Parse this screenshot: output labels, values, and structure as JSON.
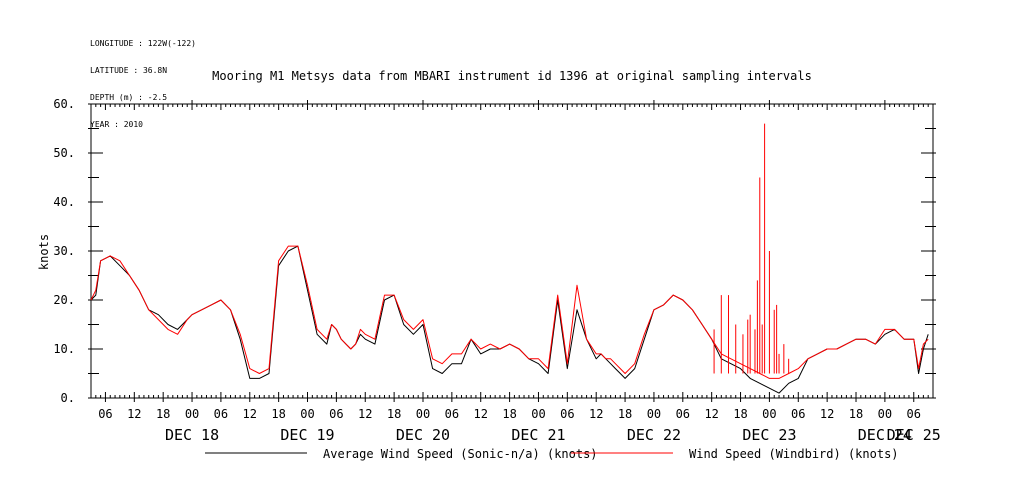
{
  "header": {
    "lines": [
      "LONGITUDE : 122W(-122)",
      "LATITUDE : 36.8N",
      "DEPTH (m) : -2.5",
      "YEAR : 2010"
    ]
  },
  "chart_data": {
    "type": "line",
    "title": "Mooring M1 Metsys data from MBARI instrument id 1396 at original sampling intervals",
    "ylabel": "knots",
    "xlabel": "",
    "ylim": [
      0,
      60
    ],
    "yticks": [
      0.0,
      10.0,
      20.0,
      30.0,
      40.0,
      50.0,
      60.0
    ],
    "ytick_labels": [
      "0.",
      "10.",
      "20.",
      "30.",
      "40.",
      "50.",
      "60."
    ],
    "xlim_hours": [
      -21,
      154
    ],
    "hour_tick_labels": [
      "06",
      "12",
      "18",
      "00",
      "06",
      "12",
      "18",
      "00",
      "06",
      "12",
      "18",
      "00",
      "06",
      "12",
      "18",
      "00",
      "06",
      "12",
      "18",
      "00",
      "06",
      "12",
      "18",
      "00",
      "06",
      "12",
      "18",
      "00",
      "06"
    ],
    "day_labels": [
      "DEC 18",
      "DEC 19",
      "DEC 20",
      "DEC 21",
      "DEC 22",
      "DEC 23",
      "DEC 24",
      "DEC 25"
    ],
    "grid": false,
    "legend_position": "bottom",
    "series": [
      {
        "name": "Average Wind Speed (Sonic-n/a) (knots)",
        "color": "#000000",
        "x": [
          -21,
          -20,
          -19,
          -17,
          -15,
          -13,
          -11,
          -9,
          -7,
          -5,
          -3,
          -1,
          0,
          2,
          4,
          6,
          8,
          10,
          12,
          14,
          16,
          18,
          20,
          22,
          24,
          26,
          28,
          29,
          30,
          31,
          32,
          33,
          34,
          35,
          36,
          38,
          40,
          42,
          44,
          46,
          48,
          50,
          52,
          54,
          56,
          58,
          60,
          62,
          64,
          66,
          68,
          70,
          72,
          74,
          76,
          78,
          80,
          82,
          84,
          85,
          86,
          87,
          88,
          89,
          90,
          92,
          94,
          96,
          98,
          100,
          102,
          104,
          106,
          108,
          110,
          112,
          114,
          116,
          118,
          120,
          122,
          124,
          126,
          128,
          130,
          132,
          134,
          136,
          138,
          140,
          142,
          144,
          146,
          148,
          150,
          151,
          152,
          153
        ],
        "y": [
          20,
          21,
          28,
          29,
          27,
          25,
          22,
          18,
          17,
          15,
          14,
          16,
          17,
          18,
          19,
          20,
          18,
          12,
          4,
          4,
          5,
          27,
          30,
          31,
          22,
          13,
          11,
          15,
          14,
          12,
          11,
          10,
          11,
          13,
          12,
          11,
          20,
          21,
          15,
          13,
          15,
          6,
          5,
          7,
          7,
          12,
          9,
          10,
          10,
          11,
          10,
          8,
          7,
          5,
          20,
          6,
          18,
          12,
          8,
          9,
          8,
          7,
          6,
          5,
          4,
          6,
          12,
          18,
          19,
          21,
          20,
          18,
          15,
          12,
          8,
          7,
          6,
          4,
          3,
          2,
          1,
          3,
          4,
          8,
          9,
          10,
          10,
          11,
          12,
          12,
          11,
          13,
          14,
          12,
          12,
          5,
          10,
          13
        ]
      },
      {
        "name": "Wind Speed (Windbird) (knots)",
        "color": "#ff0000",
        "x": [
          -21,
          -20,
          -19,
          -17,
          -15,
          -13,
          -11,
          -9,
          -7,
          -5,
          -3,
          -1,
          0,
          2,
          4,
          6,
          8,
          10,
          12,
          14,
          16,
          18,
          20,
          22,
          24,
          26,
          28,
          29,
          30,
          31,
          32,
          33,
          34,
          35,
          36,
          38,
          40,
          42,
          44,
          46,
          48,
          50,
          52,
          54,
          56,
          58,
          60,
          62,
          64,
          66,
          68,
          70,
          72,
          74,
          76,
          78,
          80,
          82,
          84,
          85,
          86,
          87,
          88,
          89,
          90,
          92,
          94,
          96,
          98,
          100,
          102,
          104,
          106,
          108,
          110,
          112,
          114,
          116,
          118,
          120,
          122,
          124,
          126,
          128,
          130,
          132,
          134,
          136,
          138,
          140,
          142,
          144,
          146,
          148,
          150,
          151,
          152,
          153
        ],
        "y": [
          20,
          22,
          28,
          29,
          28,
          25,
          22,
          18,
          16,
          14,
          13,
          16,
          17,
          18,
          19,
          20,
          18,
          13,
          6,
          5,
          6,
          28,
          31,
          31,
          23,
          14,
          12,
          15,
          14,
          12,
          11,
          10,
          11,
          14,
          13,
          12,
          21,
          21,
          16,
          14,
          16,
          8,
          7,
          9,
          9,
          12,
          10,
          11,
          10,
          11,
          10,
          8,
          8,
          6,
          21,
          7,
          23,
          12,
          9,
          9,
          8,
          8,
          7,
          6,
          5,
          7,
          13,
          18,
          19,
          21,
          20,
          18,
          15,
          12,
          9,
          8,
          7,
          6,
          5,
          4,
          4,
          5,
          6,
          8,
          9,
          10,
          10,
          11,
          12,
          12,
          11,
          14,
          14,
          12,
          12,
          6,
          11,
          12
        ]
      }
    ],
    "spikes": {
      "x": [
        108.5,
        110,
        111.5,
        113,
        114.5,
        115.5,
        116,
        117,
        117.5,
        118,
        118.5,
        119,
        120,
        121,
        121.5,
        122,
        123,
        124
      ],
      "y": [
        14,
        21,
        21,
        15,
        13,
        16,
        17,
        14,
        24,
        45,
        15,
        56,
        30,
        18,
        19,
        9,
        11,
        8
      ]
    }
  }
}
